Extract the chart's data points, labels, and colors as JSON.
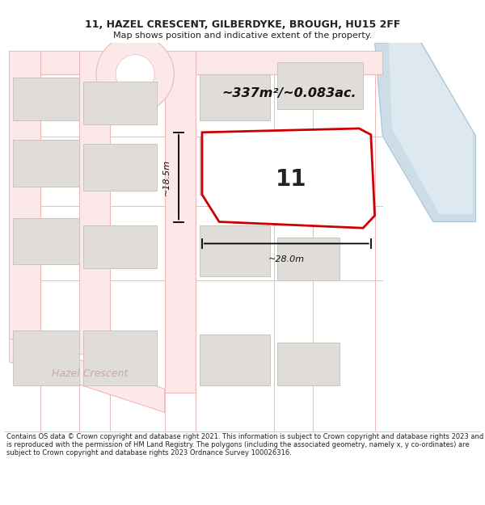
{
  "title_line1": "11, HAZEL CRESCENT, GILBERDYKE, BROUGH, HU15 2FF",
  "title_line2": "Map shows position and indicative extent of the property.",
  "area_text": "~337m²/~0.083ac.",
  "plot_number": "11",
  "dim_width": "~28.0m",
  "dim_height": "~18.5m",
  "street_label": "Hazel Crescent",
  "footer_text": "Contains OS data © Crown copyright and database right 2021. This information is subject to Crown copyright and database rights 2023 and is reproduced with the permission of HM Land Registry. The polygons (including the associated geometry, namely x, y co-ordinates) are subject to Crown copyright and database rights 2023 Ordnance Survey 100026316.",
  "white_bg": "#ffffff",
  "map_bg": "#f8f6f4",
  "road_line_color": "#f0b8b8",
  "road_fill_color": "#fce8e8",
  "building_fill": "#e0ddd8",
  "building_outline": "#c8c5c0",
  "highlight_color": "#cc0000",
  "water_fill": "#cddde8",
  "water_outline": "#a8c4d8",
  "dim_color": "#111111",
  "text_color": "#222222",
  "street_color": "#c8a8a8"
}
